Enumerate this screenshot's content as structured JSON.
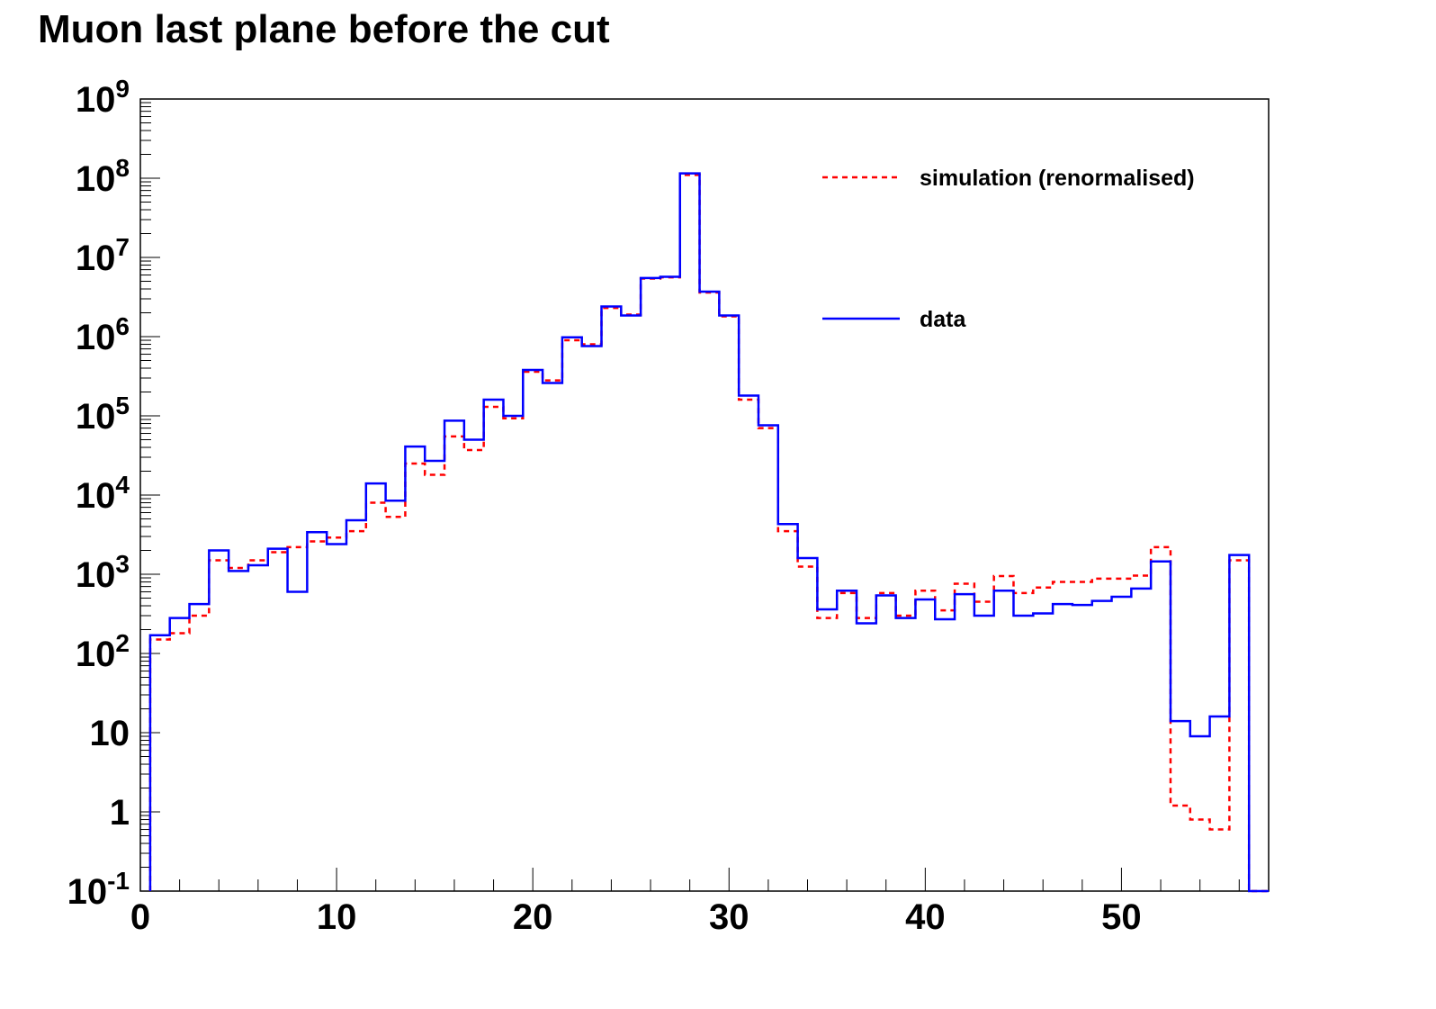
{
  "chart_data": {
    "type": "histogram",
    "title": "Muon last plane before the cut",
    "xlabel": "",
    "ylabel": "",
    "x_range": [
      0,
      57.5
    ],
    "y_range": [
      0.1,
      1000000000
    ],
    "y_scale": "log",
    "x_ticks": [
      "0",
      "10",
      "20",
      "30",
      "40",
      "50"
    ],
    "x_tick_values": [
      0,
      10,
      20,
      30,
      40,
      50
    ],
    "y_ticks": [
      {
        "value": 0.1,
        "base": "10",
        "exp": "-1"
      },
      {
        "value": 1,
        "base": "1",
        "exp": ""
      },
      {
        "value": 10,
        "base": "10",
        "exp": ""
      },
      {
        "value": 100,
        "base": "10",
        "exp": "2"
      },
      {
        "value": 1000,
        "base": "10",
        "exp": "3"
      },
      {
        "value": 10000,
        "base": "10",
        "exp": "4"
      },
      {
        "value": 100000,
        "base": "10",
        "exp": "5"
      },
      {
        "value": 1000000,
        "base": "10",
        "exp": "6"
      },
      {
        "value": 10000000,
        "base": "10",
        "exp": "7"
      },
      {
        "value": 100000000,
        "base": "10",
        "exp": "8"
      },
      {
        "value": 1000000000,
        "base": "10",
        "exp": "9"
      }
    ],
    "bin_edges_start": 0.5,
    "bin_width": 1,
    "grid": false,
    "legend_position": "top-right",
    "series": [
      {
        "name": "simulation (renormalised)",
        "color": "#ff0000",
        "style": "dashed",
        "values": [
          150,
          180,
          300,
          1500,
          1200,
          1500,
          1900,
          2200,
          2600,
          2900,
          3500,
          8000,
          5300,
          25000,
          18000,
          55000,
          37000,
          130000,
          93000,
          360000,
          280000,
          900000,
          800000,
          2300000,
          1900000,
          5400000,
          5600000,
          110000000,
          3600000,
          1800000,
          160000,
          70000,
          3500,
          1250,
          280,
          580,
          280,
          580,
          300,
          620,
          350,
          760,
          450,
          950,
          580,
          680,
          800,
          800,
          880,
          880,
          960,
          2200,
          1.2,
          0.8,
          0.6,
          1500
        ]
      },
      {
        "name": "data",
        "color": "#0000ff",
        "style": "solid",
        "values": [
          170,
          280,
          420,
          2000,
          1100,
          1300,
          2100,
          600,
          3400,
          2400,
          4800,
          14000,
          8500,
          41000,
          27000,
          87000,
          50000,
          160000,
          100000,
          380000,
          260000,
          980000,
          760000,
          2400000,
          1850000,
          5500000,
          5700000,
          115000000,
          3700000,
          1850000,
          180000,
          76000,
          4300,
          1600,
          360,
          620,
          240,
          540,
          280,
          480,
          270,
          560,
          300,
          620,
          300,
          320,
          420,
          410,
          460,
          520,
          660,
          1450,
          14,
          9,
          16,
          1750
        ]
      }
    ]
  }
}
